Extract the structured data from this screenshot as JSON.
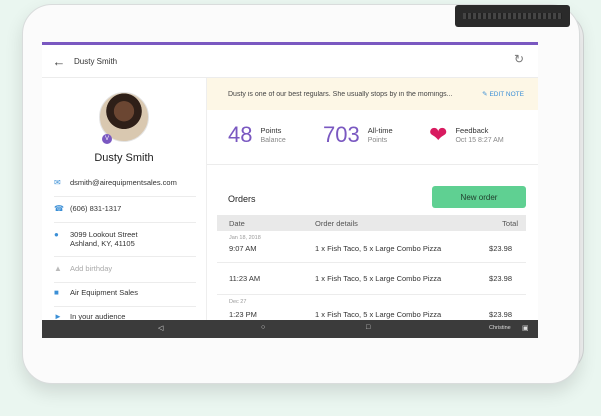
{
  "header": {
    "title": "Dusty Smith",
    "back_icon": "arrow-left-icon",
    "sync_icon": "sync-icon"
  },
  "customer": {
    "name": "Dusty Smith",
    "badge": "V",
    "email": "dsmith@airequipmentsales.com",
    "phone": "(606) 831-1317",
    "address_line1": "3099 Lookout Street",
    "address_line2": "Ashland, KY, 41105",
    "birthday_placeholder": "Add birthday",
    "company": "Air Equipment Sales",
    "audience": "In your audience"
  },
  "note": {
    "text": "Dusty is one of our best regulars. She usually stops by in the mornings...",
    "edit_label": "EDIT NOTE"
  },
  "stats": {
    "points_value": "48",
    "points_label": "Points",
    "points_sub": "Balance",
    "alltime_value": "703",
    "alltime_label": "All-time",
    "alltime_sub": "Points",
    "feedback_label": "Feedback",
    "feedback_date": "Oct 15 8:27 AM"
  },
  "orders": {
    "title": "Orders",
    "new_order_label": "New order",
    "columns": [
      "Date",
      "Order details",
      "Total"
    ],
    "rows": [
      {
        "date_header": "Jan 18, 2018",
        "time": "9:07 AM",
        "details": "1 x Fish Taco, 5 x Large Combo Pizza",
        "total": "$23.98"
      },
      {
        "date_header": "",
        "time": "11:23 AM",
        "details": "1 x Fish Taco, 5 x Large Combo Pizza",
        "total": "$23.98"
      },
      {
        "date_header": "Dec 27",
        "time": "1:23 PM",
        "details": "1 x Fish Taco, 5 x Large Combo Pizza",
        "total": "$23.98"
      }
    ]
  },
  "navbar": {
    "user": "Christine"
  },
  "colors": {
    "accent": "#7a58c1",
    "button": "#5fd092",
    "heart": "#d81b60",
    "link": "#3b8fd6"
  }
}
